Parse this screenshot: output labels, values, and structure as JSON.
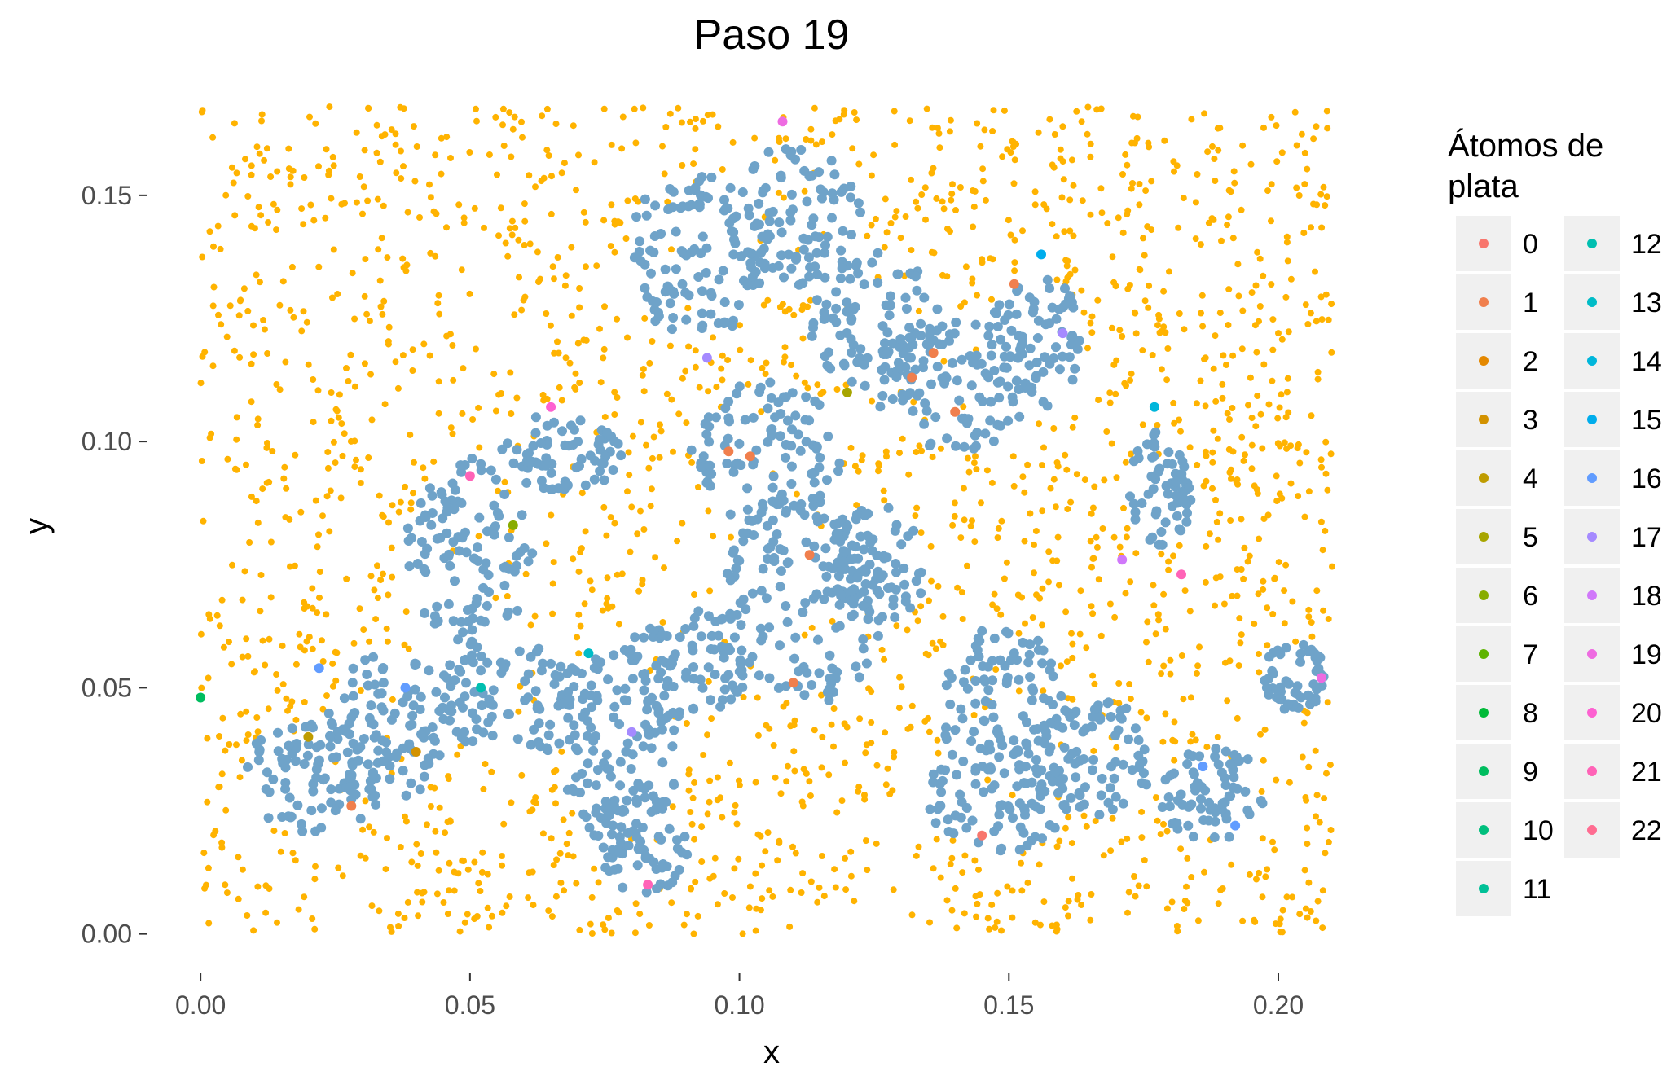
{
  "chart_data": {
    "type": "scatter",
    "title": "Paso  19",
    "xlabel": "x",
    "ylabel": "y",
    "xlim": [
      -0.01,
      0.213
    ],
    "ylim": [
      -0.008,
      0.169
    ],
    "x_ticks": [
      0.0,
      0.05,
      0.1,
      0.15,
      0.2
    ],
    "x_tick_labels": [
      "0.00",
      "0.05",
      "0.10",
      "0.15",
      "0.20"
    ],
    "y_ticks": [
      0.0,
      0.05,
      0.1,
      0.15
    ],
    "y_tick_labels": [
      "0.00",
      "0.05",
      "0.10",
      "0.15"
    ],
    "grid": false,
    "legend": {
      "title": "Átomos de plata",
      "title_lines": [
        "Átomos de",
        "plata"
      ],
      "placement": "right",
      "columns": 2,
      "categories": [
        "0",
        "1",
        "2",
        "3",
        "4",
        "5",
        "6",
        "7",
        "8",
        "9",
        "10",
        "11",
        "12",
        "13",
        "14",
        "15",
        "16",
        "17",
        "18",
        "19",
        "20",
        "21",
        "22"
      ],
      "colors": [
        "#F8766D",
        "#F07F4D",
        "#E48800",
        "#D39200",
        "#BF9C00",
        "#A7A500",
        "#88AC00",
        "#5EB300",
        "#00BA38",
        "#00BD5F",
        "#00BF7D",
        "#00C097",
        "#00BFB0",
        "#00BCC7",
        "#00B6DB",
        "#00ADEC",
        "#619CFF",
        "#A58AFF",
        "#D078FA",
        "#EE6BE1",
        "#FD61D1",
        "#FF63B7",
        "#FF6C91"
      ]
    },
    "background_series": {
      "name_hint": "substrate",
      "color": "#FFB300",
      "region": "whole plot area, sparser inside the blue clusters"
    },
    "cluster_series": {
      "color": "#6FA3C9",
      "clusters": [
        {
          "cx": 0.022,
          "cy": 0.032,
          "rx": 0.014,
          "ry": 0.012
        },
        {
          "cx": 0.035,
          "cy": 0.042,
          "rx": 0.012,
          "ry": 0.015
        },
        {
          "cx": 0.05,
          "cy": 0.078,
          "rx": 0.012,
          "ry": 0.02
        },
        {
          "cx": 0.058,
          "cy": 0.048,
          "rx": 0.015,
          "ry": 0.012
        },
        {
          "cx": 0.078,
          "cy": 0.038,
          "rx": 0.012,
          "ry": 0.02
        },
        {
          "cx": 0.082,
          "cy": 0.018,
          "rx": 0.009,
          "ry": 0.01
        },
        {
          "cx": 0.09,
          "cy": 0.055,
          "rx": 0.012,
          "ry": 0.012
        },
        {
          "cx": 0.092,
          "cy": 0.138,
          "rx": 0.013,
          "ry": 0.017
        },
        {
          "cx": 0.105,
          "cy": 0.098,
          "rx": 0.014,
          "ry": 0.015
        },
        {
          "cx": 0.112,
          "cy": 0.068,
          "rx": 0.015,
          "ry": 0.022
        },
        {
          "cx": 0.11,
          "cy": 0.145,
          "rx": 0.013,
          "ry": 0.015
        },
        {
          "cx": 0.125,
          "cy": 0.125,
          "rx": 0.012,
          "ry": 0.014
        },
        {
          "cx": 0.14,
          "cy": 0.112,
          "rx": 0.015,
          "ry": 0.014
        },
        {
          "cx": 0.155,
          "cy": 0.12,
          "rx": 0.009,
          "ry": 0.014
        },
        {
          "cx": 0.148,
          "cy": 0.048,
          "rx": 0.012,
          "ry": 0.015
        },
        {
          "cx": 0.148,
          "cy": 0.028,
          "rx": 0.013,
          "ry": 0.012
        },
        {
          "cx": 0.165,
          "cy": 0.036,
          "rx": 0.012,
          "ry": 0.012
        },
        {
          "cx": 0.178,
          "cy": 0.09,
          "rx": 0.006,
          "ry": 0.012
        },
        {
          "cx": 0.188,
          "cy": 0.028,
          "rx": 0.01,
          "ry": 0.01
        },
        {
          "cx": 0.203,
          "cy": 0.052,
          "rx": 0.006,
          "ry": 0.007
        },
        {
          "cx": 0.067,
          "cy": 0.098,
          "rx": 0.012,
          "ry": 0.008
        },
        {
          "cx": 0.125,
          "cy": 0.075,
          "rx": 0.01,
          "ry": 0.012
        }
      ]
    },
    "highlighted_atoms": [
      {
        "x": 0.0,
        "y": 0.048,
        "c": 9
      },
      {
        "x": 0.02,
        "y": 0.04,
        "c": 4
      },
      {
        "x": 0.022,
        "y": 0.054,
        "c": 16
      },
      {
        "x": 0.028,
        "y": 0.026,
        "c": 1
      },
      {
        "x": 0.038,
        "y": 0.05,
        "c": 16
      },
      {
        "x": 0.04,
        "y": 0.037,
        "c": 3
      },
      {
        "x": 0.05,
        "y": 0.093,
        "c": 21
      },
      {
        "x": 0.052,
        "y": 0.05,
        "c": 12
      },
      {
        "x": 0.058,
        "y": 0.083,
        "c": 6
      },
      {
        "x": 0.065,
        "y": 0.107,
        "c": 20
      },
      {
        "x": 0.072,
        "y": 0.057,
        "c": 13
      },
      {
        "x": 0.08,
        "y": 0.041,
        "c": 17
      },
      {
        "x": 0.083,
        "y": 0.01,
        "c": 21
      },
      {
        "x": 0.094,
        "y": 0.117,
        "c": 17
      },
      {
        "x": 0.098,
        "y": 0.098,
        "c": 1
      },
      {
        "x": 0.102,
        "y": 0.097,
        "c": 1
      },
      {
        "x": 0.108,
        "y": 0.165,
        "c": 19
      },
      {
        "x": 0.11,
        "y": 0.051,
        "c": 1
      },
      {
        "x": 0.113,
        "y": 0.077,
        "c": 1
      },
      {
        "x": 0.12,
        "y": 0.11,
        "c": 5
      },
      {
        "x": 0.132,
        "y": 0.113,
        "c": 1
      },
      {
        "x": 0.136,
        "y": 0.118,
        "c": 1
      },
      {
        "x": 0.14,
        "y": 0.106,
        "c": 1
      },
      {
        "x": 0.145,
        "y": 0.02,
        "c": 0
      },
      {
        "x": 0.151,
        "y": 0.132,
        "c": 1
      },
      {
        "x": 0.156,
        "y": 0.138,
        "c": 15
      },
      {
        "x": 0.16,
        "y": 0.122,
        "c": 17
      },
      {
        "x": 0.171,
        "y": 0.076,
        "c": 18
      },
      {
        "x": 0.177,
        "y": 0.107,
        "c": 14
      },
      {
        "x": 0.182,
        "y": 0.073,
        "c": 21
      },
      {
        "x": 0.186,
        "y": 0.034,
        "c": 16
      },
      {
        "x": 0.192,
        "y": 0.022,
        "c": 16
      },
      {
        "x": 0.208,
        "y": 0.052,
        "c": 19
      }
    ]
  }
}
